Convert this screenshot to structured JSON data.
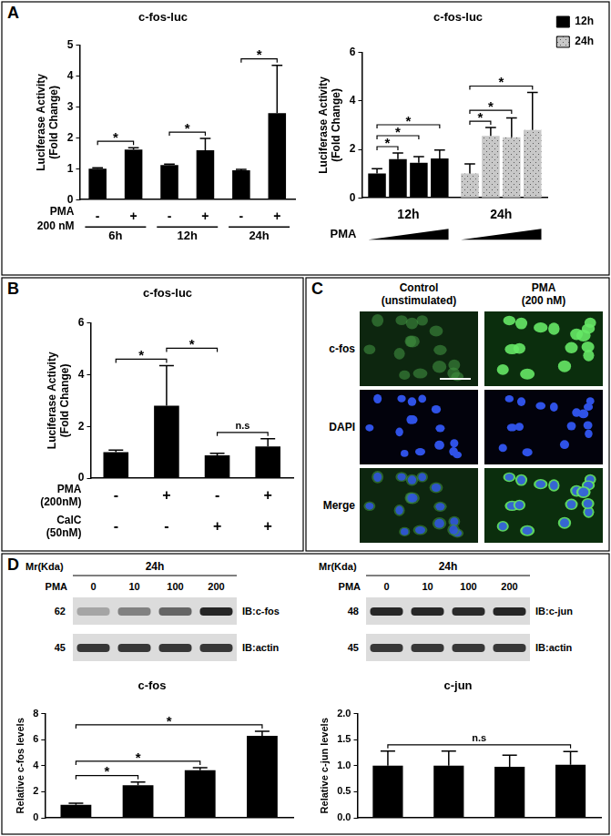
{
  "panel_labels": [
    "A",
    "B",
    "C",
    "D"
  ],
  "chart_data": [
    {
      "type": "bar",
      "title": "c-fos-luc",
      "y_label": [
        "Luciferase Activity",
        "(Fold Change)"
      ],
      "categories": [
        "-",
        "+",
        "-",
        "+",
        "-",
        "+"
      ],
      "values": [
        1.0,
        1.62,
        1.12,
        1.6,
        0.95,
        2.8
      ],
      "errors": [
        0.03,
        0.06,
        0.03,
        0.38,
        0.03,
        1.55
      ],
      "color": "#000000",
      "ylim": [
        0,
        5
      ],
      "yticks": [
        0,
        1,
        2,
        3,
        4,
        5
      ],
      "grid": false,
      "row_label": [
        "PMA",
        "200 nM"
      ],
      "groups": [
        {
          "label": "6h",
          "from": 0,
          "to": 1
        },
        {
          "label": "12h",
          "from": 2,
          "to": 3
        },
        {
          "label": "24h",
          "from": 4,
          "to": 5
        }
      ],
      "annotations": [
        {
          "from": 0,
          "to": 1,
          "label": "*"
        },
        {
          "from": 2,
          "to": 3,
          "label": "*"
        },
        {
          "from": 4,
          "to": 5,
          "label": "*"
        }
      ]
    },
    {
      "type": "bar",
      "title": "c-fos-luc",
      "y_label": [
        "Luciferase Activity",
        "(Fold Change)"
      ],
      "categories": [
        "12h",
        "24h"
      ],
      "series": [
        {
          "values": [
            1.0,
            1.0
          ],
          "errors": [
            0.2,
            0.4
          ],
          "colors": [
            "#000000",
            "#c8c8c8"
          ]
        },
        {
          "values": [
            1.6,
            2.55
          ],
          "errors": [
            0.25,
            0.35
          ],
          "colors": [
            "#000000",
            "#c8c8c8"
          ]
        },
        {
          "values": [
            1.45,
            2.5
          ],
          "errors": [
            0.25,
            0.8
          ],
          "colors": [
            "#000000",
            "#c8c8c8"
          ]
        },
        {
          "values": [
            1.62,
            2.8
          ],
          "errors": [
            0.35,
            1.55
          ],
          "colors": [
            "#000000",
            "#c8c8c8"
          ]
        }
      ],
      "ylim": [
        0,
        6
      ],
      "yticks": [
        0,
        2,
        4,
        6
      ],
      "grid": false,
      "legend": "top-right",
      "legend_items": [
        {
          "name": "12h",
          "color": "#000000"
        },
        {
          "name": "24h",
          "color": "#c8c8c8"
        }
      ],
      "ramp_label": "PMA",
      "annotations": [
        {
          "group": 0,
          "from": 0,
          "to": 1,
          "label": "*"
        },
        {
          "group": 0,
          "from": 0,
          "to": 2,
          "label": "*"
        },
        {
          "group": 0,
          "from": 0,
          "to": 3,
          "label": "*"
        },
        {
          "group": 1,
          "from": 0,
          "to": 1,
          "label": "*"
        },
        {
          "group": 1,
          "from": 0,
          "to": 2,
          "label": "*"
        },
        {
          "group": 1,
          "from": 0,
          "to": 3,
          "label": "*"
        }
      ]
    },
    {
      "type": "bar",
      "title": "c-fos-luc",
      "y_label": [
        "Luciferase Activity",
        "(Fold Change)"
      ],
      "categories": [
        null,
        null,
        null,
        null
      ],
      "values": [
        1.0,
        2.8,
        0.88,
        1.22
      ],
      "errors": [
        0.08,
        1.55,
        0.08,
        0.3
      ],
      "color": "#000000",
      "ylim": [
        0,
        6
      ],
      "yticks": [
        0,
        2,
        4,
        6
      ],
      "grid": false,
      "tick_labels": "y",
      "x_rows": [
        {
          "label": [
            "PMA",
            "(200nM)"
          ],
          "values": [
            "-",
            "+",
            "-",
            "+"
          ]
        },
        {
          "label": [
            "CalC",
            "(50nM)"
          ],
          "values": [
            "-",
            "-",
            "+",
            "+"
          ]
        }
      ],
      "annotations": [
        {
          "from": 0,
          "to": 1,
          "label": "*"
        },
        {
          "from": 1,
          "to": 2,
          "label": "*"
        },
        {
          "from": 2,
          "to": 3,
          "label": "n.s"
        }
      ]
    },
    {
      "type": "bar",
      "title": "c-fos",
      "y_label": "Relative c-fos levels",
      "categories": [
        null,
        null,
        null,
        null
      ],
      "values": [
        1.0,
        2.5,
        3.65,
        6.3
      ],
      "errors": [
        0.12,
        0.25,
        0.2,
        0.35
      ],
      "color": "#000000",
      "ylim": [
        0,
        8
      ],
      "yticks": [
        0,
        2,
        4,
        6,
        8
      ],
      "grid": false,
      "tick_labels": "y",
      "annotations": [
        {
          "from": 0,
          "to": 1,
          "label": "*"
        },
        {
          "from": 0,
          "to": 2,
          "label": "*"
        },
        {
          "from": 0,
          "to": 3,
          "label": "*"
        }
      ]
    },
    {
      "type": "bar",
      "title": "c-jun",
      "y_label": "Relative c-jun levels",
      "categories": [
        null,
        null,
        null,
        null
      ],
      "values": [
        1.0,
        1.0,
        0.98,
        1.02
      ],
      "errors": [
        0.28,
        0.28,
        0.22,
        0.25
      ],
      "color": "#000000",
      "ylim": [
        0,
        2
      ],
      "yticks": [
        {
          "value": 0,
          "label": "0.0"
        },
        0.5,
        {
          "value": 1,
          "label": "1.0"
        },
        1.5,
        {
          "value": 2,
          "label": "2.0"
        }
      ],
      "grid": false,
      "tick_labels": "y",
      "annotations": [
        {
          "from": 0,
          "to": 3,
          "label": "n.s"
        }
      ]
    }
  ],
  "microscopy": {
    "columns": [
      [
        "Control",
        "(unstimulated)"
      ],
      [
        "PMA",
        "(200 nM)"
      ]
    ],
    "rows": [
      "c-fos",
      "DAPI",
      "Merge"
    ]
  },
  "blots": [
    {
      "mr_label": "Mr(Kda)",
      "header": "24h",
      "lane_label": "PMA",
      "lanes": [
        0,
        10,
        100,
        200
      ],
      "bands": [
        {
          "mr": 62,
          "label": "IB:c-fos"
        },
        {
          "mr": 45,
          "label": "IB:actin"
        }
      ]
    },
    {
      "mr_label": "Mr(Kda)",
      "header": "24h",
      "lane_label": "PMA",
      "lanes": [
        0,
        10,
        100,
        200
      ],
      "bands": [
        {
          "mr": 48,
          "label": "IB:c-jun"
        },
        {
          "mr": 45,
          "label": "IB:actin"
        }
      ]
    }
  ]
}
